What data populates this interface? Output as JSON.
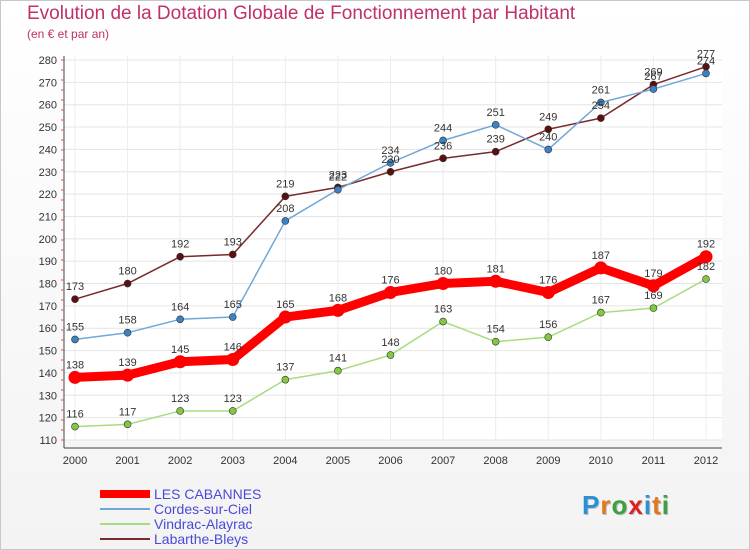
{
  "title": "Evolution de la Dotation Globale de Fonctionnement par Habitant",
  "subtitle": "(en € et par an)",
  "logo": {
    "text": "Proxiti",
    "letters": [
      "P",
      "r",
      "o",
      "x",
      "i",
      "t",
      "i"
    ],
    "colors": [
      "#2a8fd4",
      "#e07820",
      "#3aa040",
      "#e02020",
      "#2a8fd4",
      "#e07820",
      "#3aa040"
    ]
  },
  "chart_data": {
    "type": "line",
    "title": "Evolution de la Dotation Globale de Fonctionnement par Habitant",
    "subtitle": "(en € et par an)",
    "xlabel": "",
    "ylabel": "",
    "ylim": [
      110,
      280
    ],
    "yticks": [
      110,
      120,
      130,
      140,
      150,
      160,
      170,
      180,
      190,
      200,
      210,
      220,
      230,
      240,
      250,
      260,
      270,
      280
    ],
    "categories": [
      "2000",
      "2001",
      "2002",
      "2003",
      "2004",
      "2005",
      "2006",
      "2007",
      "2008",
      "2009",
      "2010",
      "2011",
      "2012"
    ],
    "grid": true,
    "legend_position": "bottom-left",
    "series": [
      {
        "name": "LES CABANNES",
        "color": "#ff0000",
        "marker": "#ff0000",
        "width": "thick",
        "values": [
          138,
          139,
          145,
          146,
          165,
          168,
          176,
          180,
          181,
          176,
          187,
          179,
          192
        ]
      },
      {
        "name": "Cordes-sur-Ciel",
        "color": "#6fa8d8",
        "marker": "#3b82c4",
        "width": "thin",
        "values": [
          155,
          158,
          164,
          165,
          208,
          222,
          234,
          244,
          251,
          240,
          261,
          267,
          274
        ]
      },
      {
        "name": "Vindrac-Alayrac",
        "color": "#a8dc80",
        "marker": "#82c840",
        "width": "thin",
        "values": [
          116,
          117,
          123,
          123,
          137,
          141,
          148,
          163,
          154,
          156,
          167,
          169,
          182
        ]
      },
      {
        "name": "Labarthe-Bleys",
        "color": "#7a2a2a",
        "marker": "#5a1010",
        "width": "thin",
        "values": [
          173,
          180,
          192,
          193,
          219,
          223,
          230,
          236,
          239,
          249,
          254,
          269,
          277
        ]
      }
    ]
  }
}
